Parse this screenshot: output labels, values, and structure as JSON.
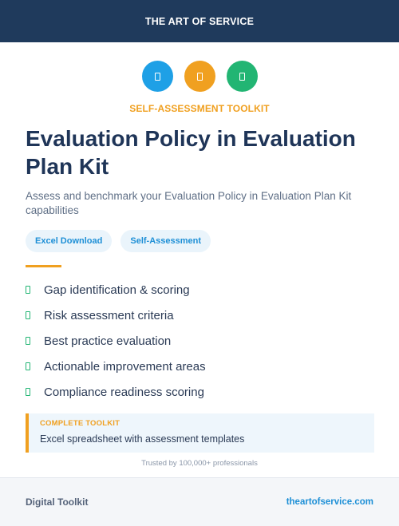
{
  "header": {
    "brand": "THE ART OF SERVICE"
  },
  "icons": [
    {
      "name": "document-icon",
      "color": "#1ea0e6"
    },
    {
      "name": "document-icon",
      "color": "#f0a020"
    },
    {
      "name": "document-icon",
      "color": "#22b573"
    }
  ],
  "kicker": "SELF-ASSESSMENT TOOLKIT",
  "title": "Evaluation Policy in Evaluation Plan Kit",
  "subtitle": "Assess and benchmark your Evaluation Policy in Evaluation Plan Kit capabilities",
  "tags": [
    "Excel Download",
    "Self-Assessment"
  ],
  "features": [
    "Gap identification & scoring",
    "Risk assessment criteria",
    "Best practice evaluation",
    "Actionable improvement areas",
    "Compliance readiness scoring"
  ],
  "callout": {
    "label": "COMPLETE TOOLKIT",
    "text": "Excel spreadsheet with assessment templates"
  },
  "trust": "Trusted by 100,000+ professionals",
  "footer": {
    "left": "Digital Toolkit",
    "right": "theartofservice.com"
  },
  "colors": {
    "navy": "#1f3a5c",
    "accent_orange": "#f0a020",
    "accent_blue": "#1ea0e6",
    "accent_green": "#22b573"
  }
}
